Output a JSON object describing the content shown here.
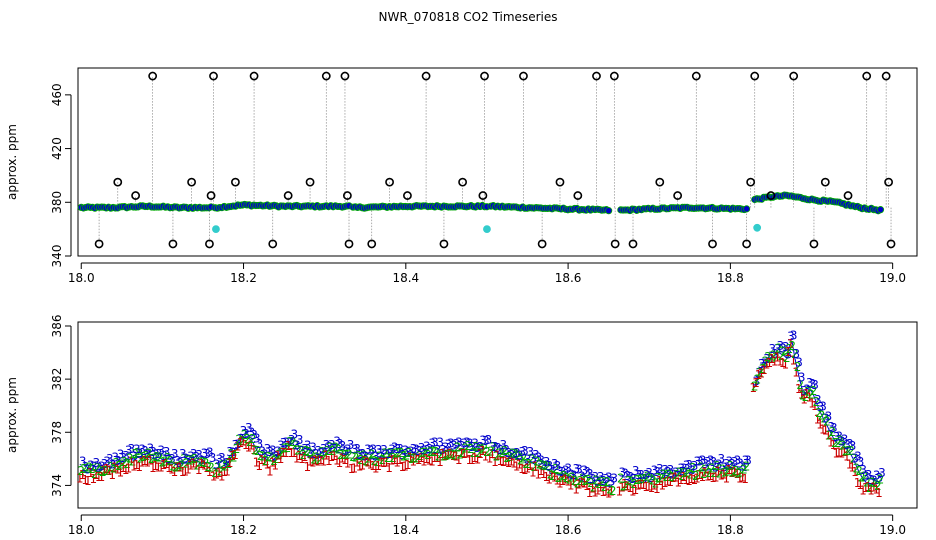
{
  "title": "NWR_070818  CO2 Timeseries",
  "chart_data": [
    {
      "type": "scatter",
      "title": "NWR_070818  CO2 Timeseries",
      "ylabel": "approx. ppm",
      "xlabel": "",
      "xlim": [
        17.996,
        19.03
      ],
      "ylim": [
        340,
        480
      ],
      "x_ticks": [
        18.0,
        18.2,
        18.4,
        18.6,
        18.8,
        19.0
      ],
      "x_tick_labels": [
        "18.0",
        "18.2",
        "18.4",
        "18.6",
        "18.8",
        "19.0"
      ],
      "y_ticks": [
        340,
        380,
        420,
        460
      ],
      "y_tick_labels": [
        "340",
        "380",
        "420",
        "460"
      ],
      "grid": false,
      "colors": {
        "baseline_points": "#0000cc",
        "baseline_edge": "#00aa00",
        "line": "#cc0000",
        "flagged": "#000000",
        "cyan": "#33cccc",
        "drop_lines": "#888888"
      },
      "baseline_segments": [
        {
          "x": [
            18.0,
            18.04,
            18.08,
            18.12,
            18.16
          ],
          "y": [
            376,
            376,
            377,
            376,
            376
          ]
        },
        {
          "x": [
            18.165,
            18.2,
            18.25,
            18.3,
            18.33
          ],
          "y": [
            376,
            378,
            377,
            377,
            377
          ]
        },
        {
          "x": [
            18.335,
            18.4,
            18.45,
            18.5
          ],
          "y": [
            376,
            377,
            377,
            377
          ]
        },
        {
          "x": [
            18.505,
            18.55,
            18.6,
            18.65
          ],
          "y": [
            377,
            376,
            375,
            374
          ]
        },
        {
          "x": [
            18.665,
            18.7,
            18.75,
            18.82
          ],
          "y": [
            374,
            375,
            376,
            375
          ]
        },
        {
          "x": [
            18.83,
            18.85,
            18.87,
            18.9,
            18.93,
            18.96,
            18.985
          ],
          "y": [
            382,
            384,
            385,
            382,
            380,
            376,
            374
          ]
        }
      ],
      "flagged_high": [
        18.088,
        18.163,
        18.213,
        18.302,
        18.325,
        18.425,
        18.497,
        18.545,
        18.635,
        18.657,
        18.758,
        18.83,
        18.878,
        18.968,
        18.992
      ],
      "flagged_mid": [
        18.045,
        18.067,
        18.136,
        18.16,
        18.19,
        18.255,
        18.282,
        18.328,
        18.38,
        18.402,
        18.47,
        18.495,
        18.59,
        18.612,
        18.713,
        18.735,
        18.825,
        18.85,
        18.917,
        18.945,
        18.995
      ],
      "flagged_low": [
        18.022,
        18.113,
        18.158,
        18.236,
        18.33,
        18.358,
        18.447,
        18.568,
        18.658,
        18.68,
        18.778,
        18.82,
        18.903,
        18.998
      ],
      "cyan_points": [
        {
          "x": 18.166,
          "y": 360
        },
        {
          "x": 18.5,
          "y": 360
        },
        {
          "x": 18.833,
          "y": 361
        }
      ]
    },
    {
      "type": "line",
      "title": "",
      "ylabel": "approx. ppm",
      "xlabel": "",
      "xlim": [
        17.996,
        19.03
      ],
      "ylim": [
        372.3,
        386.3
      ],
      "x_ticks": [
        18.0,
        18.2,
        18.4,
        18.6,
        18.8,
        19.0
      ],
      "x_tick_labels": [
        "18.0",
        "18.2",
        "18.4",
        "18.6",
        "18.8",
        "19.0"
      ],
      "y_ticks": [
        374,
        378,
        382,
        386
      ],
      "y_tick_labels": [
        "374",
        "378",
        "382",
        "386"
      ],
      "grid": false,
      "series": [
        {
          "name": "1",
          "color": "#cc0000"
        },
        {
          "name": "2",
          "color": "#00aa00"
        },
        {
          "name": "3",
          "color": "#0000cc"
        }
      ],
      "segments": [
        {
          "x": [
            18.0,
            18.02,
            18.04,
            18.06,
            18.08,
            18.1,
            18.12,
            18.14,
            18.16
          ],
          "y": [
            375.0,
            375.2,
            375.5,
            376.0,
            376.2,
            375.8,
            375.6,
            375.8,
            375.7
          ]
        },
        {
          "x": [
            18.165,
            18.18,
            18.19,
            18.2,
            18.21,
            18.22,
            18.235,
            18.25,
            18.26,
            18.27,
            18.29,
            18.31,
            18.33
          ],
          "y": [
            375.2,
            375.6,
            376.6,
            377.8,
            377.4,
            376.2,
            375.8,
            376.8,
            377.2,
            376.4,
            376.0,
            376.6,
            376.3
          ]
        },
        {
          "x": [
            18.335,
            18.36,
            18.38,
            18.4,
            18.42,
            18.44,
            18.46,
            18.48,
            18.5
          ],
          "y": [
            376.0,
            376.0,
            376.1,
            376.2,
            376.4,
            376.5,
            376.6,
            376.7,
            376.8
          ]
        },
        {
          "x": [
            18.505,
            18.52,
            18.54,
            18.56,
            18.58,
            18.6,
            18.62,
            18.64,
            18.655
          ],
          "y": [
            376.7,
            376.3,
            376.0,
            375.6,
            375.0,
            374.7,
            374.3,
            374.0,
            373.9
          ]
        },
        {
          "x": [
            18.665,
            18.68,
            18.7,
            18.72,
            18.74,
            18.76,
            18.78,
            18.8,
            18.82
          ],
          "y": [
            374.2,
            374.3,
            374.4,
            374.6,
            374.8,
            375.1,
            375.2,
            375.3,
            375.1
          ]
        },
        {
          "x": [
            18.83,
            18.84,
            18.85,
            18.86,
            18.87,
            18.875,
            18.88,
            18.89,
            18.9,
            18.91,
            18.92,
            18.93,
            18.94,
            18.95,
            18.96,
            18.97,
            18.985
          ],
          "y": [
            381.5,
            383.0,
            383.6,
            384.0,
            383.6,
            385.2,
            383.4,
            380.8,
            381.2,
            379.6,
            378.4,
            377.2,
            377.0,
            376.2,
            374.8,
            374.0,
            374.2
          ]
        }
      ]
    }
  ]
}
